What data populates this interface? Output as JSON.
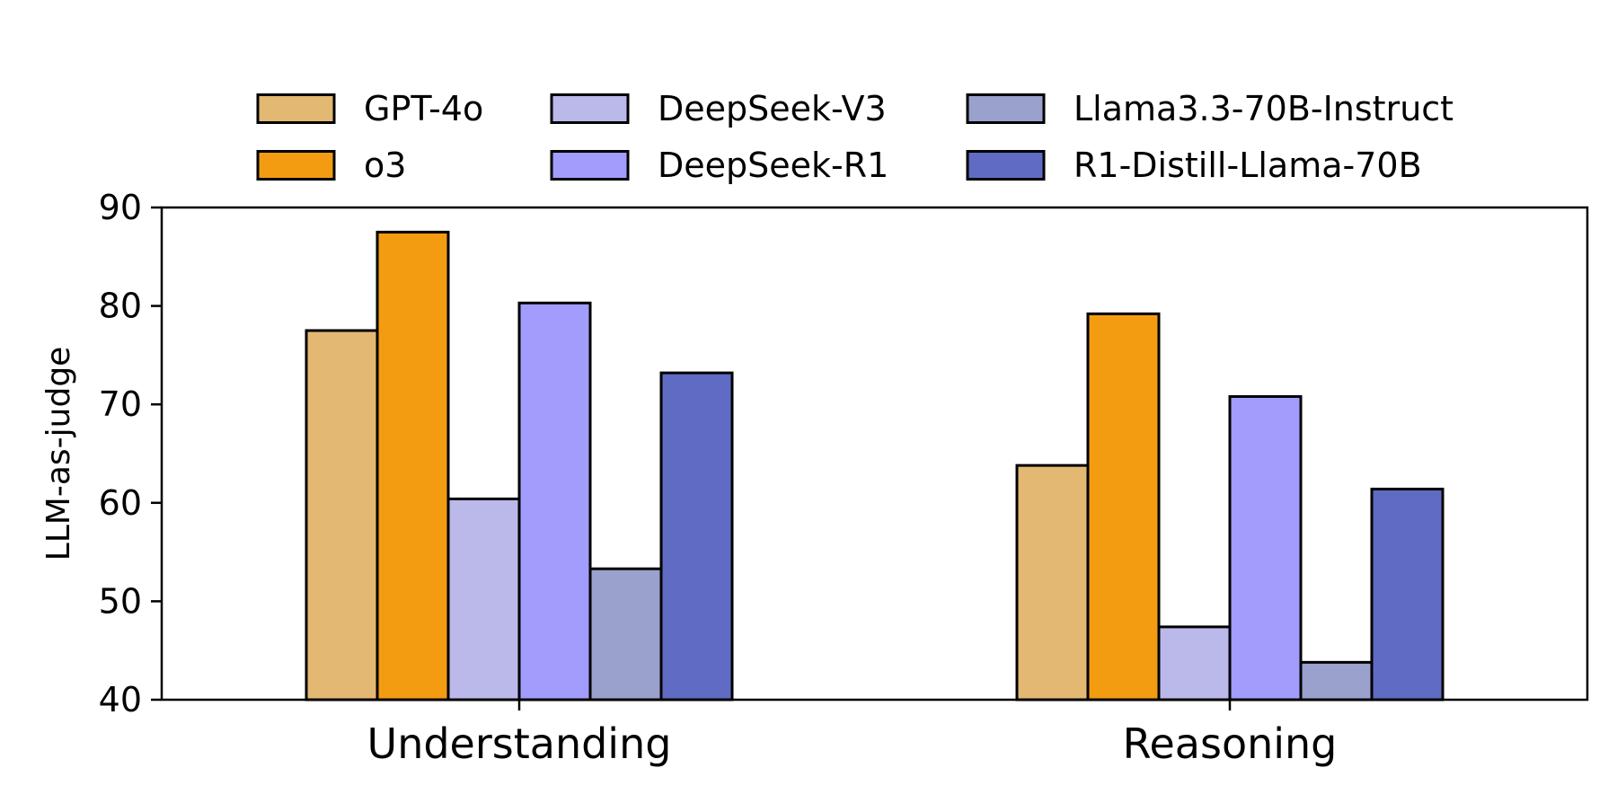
{
  "chart_data": {
    "type": "bar",
    "title": "",
    "xlabel": "",
    "ylabel": "LLM-as-judge",
    "ylim": [
      40,
      90
    ],
    "yticks": [
      40,
      50,
      60,
      70,
      80,
      90
    ],
    "grid": false,
    "legend_position": "top",
    "categories": [
      "Understanding",
      "Reasoning"
    ],
    "series": [
      {
        "name": "GPT-4o",
        "color": "#E3B873",
        "values": [
          77.5,
          63.8
        ]
      },
      {
        "name": "o3",
        "color": "#F39C12",
        "values": [
          87.5,
          79.2
        ]
      },
      {
        "name": "DeepSeek-V3",
        "color": "#BBB8EA",
        "values": [
          60.4,
          47.4
        ]
      },
      {
        "name": "DeepSeek-R1",
        "color": "#A29CFC",
        "values": [
          80.3,
          70.8
        ]
      },
      {
        "name": "Llama3.3-70B-Instruct",
        "color": "#9BA1CD",
        "values": [
          53.3,
          43.8
        ]
      },
      {
        "name": "R1-Distill-Llama-70B",
        "color": "#606BC3",
        "values": [
          73.2,
          61.4
        ]
      }
    ]
  }
}
